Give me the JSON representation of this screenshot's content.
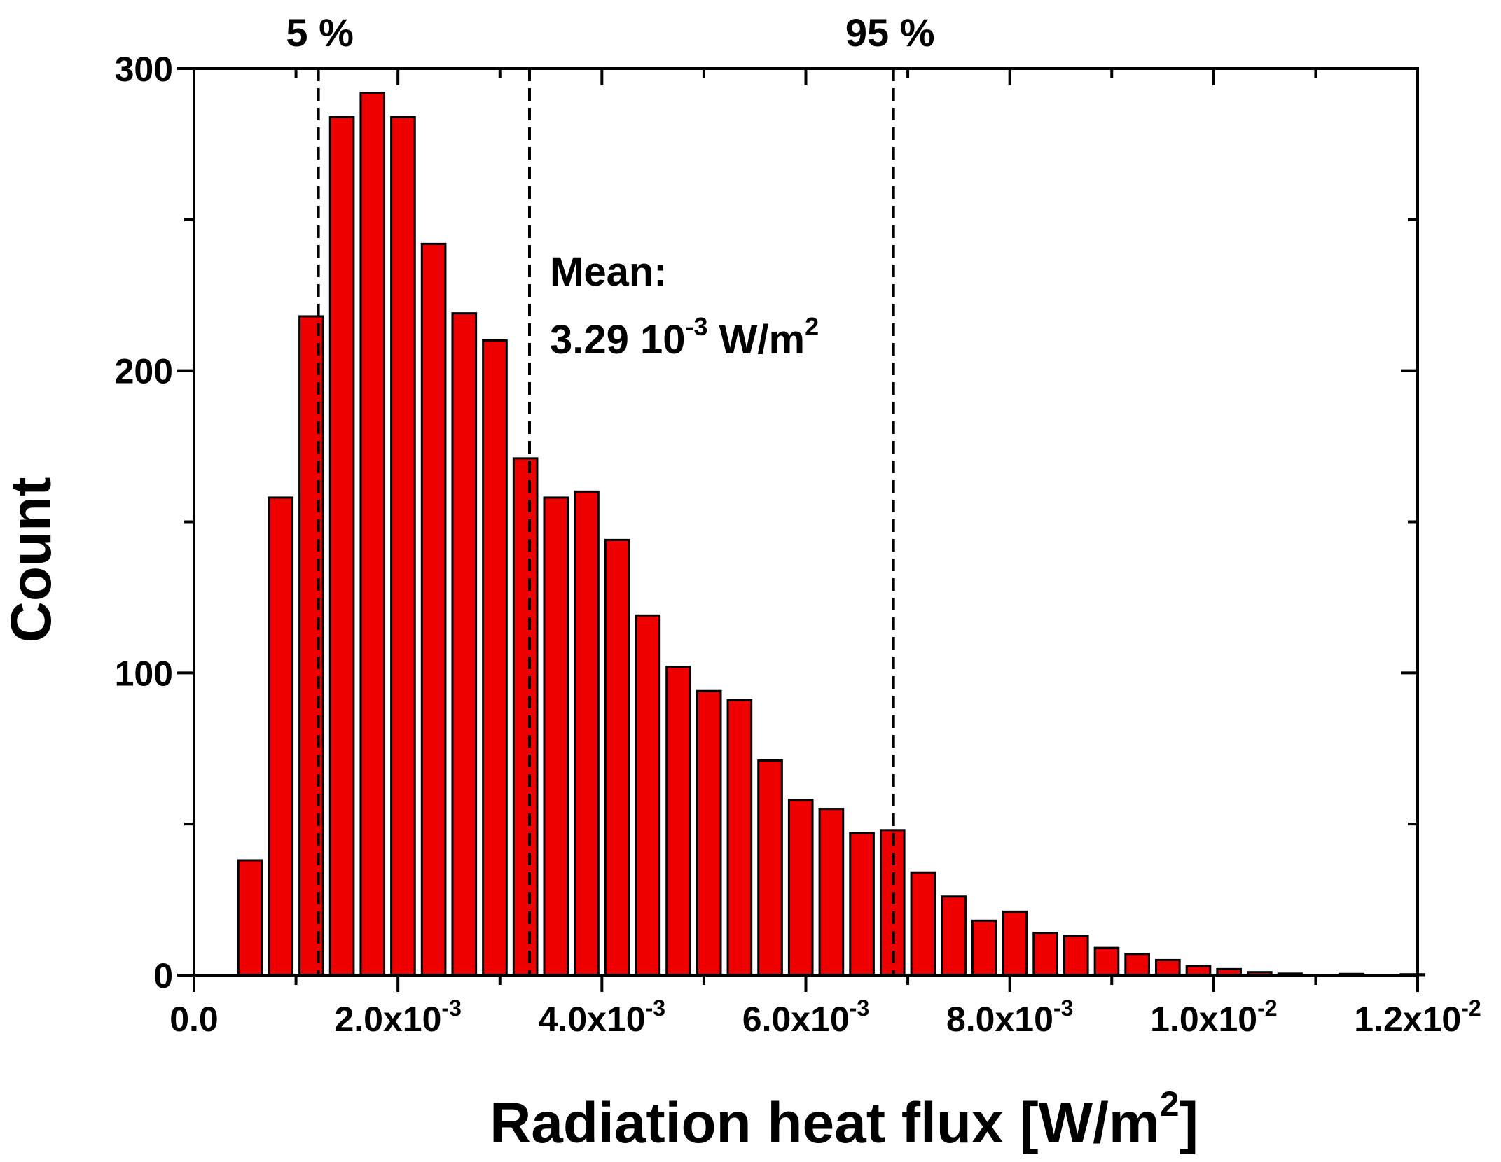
{
  "chart_data": {
    "type": "bar",
    "xlabel": "Radiation heat flux [W/m",
    "xlabel_sup": "2",
    "xlabel_tail": "]",
    "ylabel": "Count",
    "xlim": [
      0,
      0.012
    ],
    "ylim": [
      0,
      300
    ],
    "bar_color": "#ee0000",
    "grid": false,
    "bin_width": 0.0003,
    "bin_centers": [
      0.00055,
      0.00085,
      0.00115,
      0.00145,
      0.00175,
      0.00205,
      0.00235,
      0.00265,
      0.00295,
      0.00325,
      0.00355,
      0.00385,
      0.00415,
      0.00445,
      0.00475,
      0.00505,
      0.00535,
      0.00565,
      0.00595,
      0.00625,
      0.00655,
      0.00685,
      0.00715,
      0.00745,
      0.00775,
      0.00805,
      0.00835,
      0.00865,
      0.00895,
      0.00925,
      0.00955,
      0.00985,
      0.01015,
      0.01045,
      0.01075,
      0.01105,
      0.01135,
      0.01165,
      0.01195
    ],
    "values": [
      38,
      158,
      218,
      284,
      292,
      284,
      242,
      219,
      210,
      171,
      158,
      160,
      144,
      119,
      102,
      94,
      91,
      71,
      58,
      55,
      47,
      48,
      34,
      26,
      18,
      21,
      14,
      13,
      9,
      7,
      5,
      3,
      2,
      1,
      0.5,
      0,
      0.4,
      0,
      0.3
    ],
    "yticks": [
      {
        "value": 0,
        "label": "0"
      },
      {
        "value": 100,
        "label": "100"
      },
      {
        "value": 200,
        "label": "200"
      },
      {
        "value": 300,
        "label": "300"
      }
    ],
    "xticks": [
      {
        "value": 0,
        "label": "0.0",
        "exp": ""
      },
      {
        "value": 0.002,
        "label": "2.0x10",
        "exp": "-3"
      },
      {
        "value": 0.004,
        "label": "4.0x10",
        "exp": "-3"
      },
      {
        "value": 0.006,
        "label": "6.0x10",
        "exp": "-3"
      },
      {
        "value": 0.008,
        "label": "8.0x10",
        "exp": "-3"
      },
      {
        "value": 0.01,
        "label": "1.0x10",
        "exp": "-2"
      },
      {
        "value": 0.012,
        "label": "1.2x10",
        "exp": "-2"
      }
    ],
    "vlines": [
      {
        "name": "5 %",
        "value": 0.00122,
        "label": "5 %"
      },
      {
        "name": "mean",
        "value": 0.00329,
        "label": ""
      },
      {
        "name": "95 %",
        "value": 0.00686,
        "label": "95 %"
      }
    ],
    "annotation": {
      "line1": "Mean:",
      "line2_main": "3.29 10",
      "line2_exp": "-3",
      "line2_unit": " W/m",
      "line2_sup": "2"
    }
  }
}
